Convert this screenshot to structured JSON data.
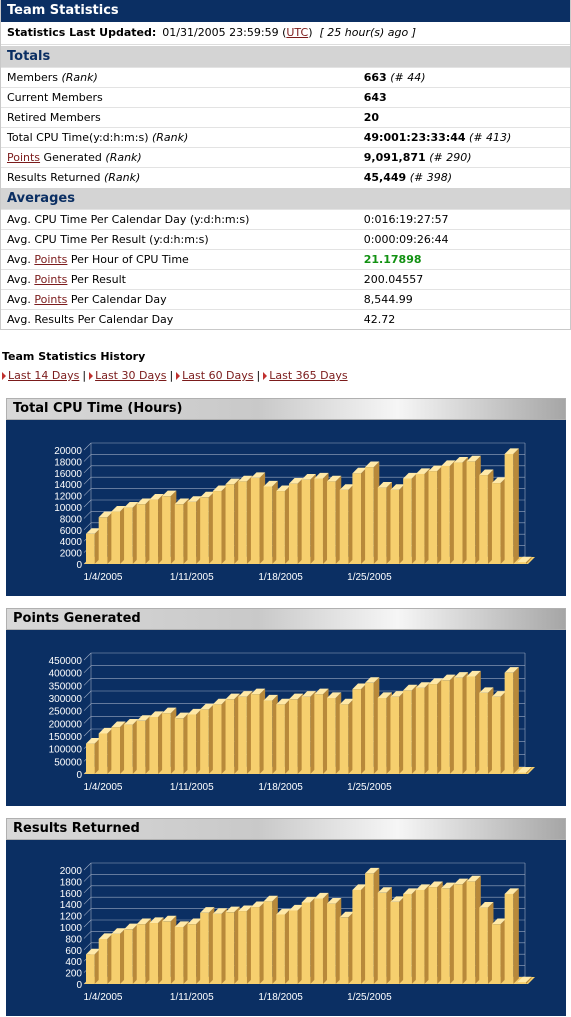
{
  "header": {
    "title": "Team Statistics"
  },
  "updated": {
    "label": "Statistics Last Updated:",
    "date": "01/31/2005 23:59:59 (",
    "tz": "UTC",
    "close": ")",
    "ago": "[ 25 hour(s) ago ]"
  },
  "totals": {
    "heading": "Totals",
    "rows": [
      {
        "label": "Members",
        "rank_label": "(Rank)",
        "value": "663",
        "rank": "(# 44)"
      },
      {
        "label": "Current Members",
        "value": "643"
      },
      {
        "label": "Retired Members",
        "value": "20"
      },
      {
        "label": "Total CPU Time(y:d:h:m:s)",
        "rank_label": "(Rank)",
        "value": "49:001:23:33:44",
        "rank": "(# 413)"
      },
      {
        "link": "Points",
        "label": " Generated",
        "rank_label": "(Rank)",
        "value": "9,091,871",
        "rank": "(# 290)"
      },
      {
        "label": "Results Returned",
        "rank_label": "(Rank)",
        "value": "45,449",
        "rank": "(# 398)"
      }
    ]
  },
  "averages": {
    "heading": "Averages",
    "rows": [
      {
        "label": "Avg. CPU Time Per Calendar Day (y:d:h:m:s)",
        "value": "0:016:19:27:57"
      },
      {
        "label": "Avg. CPU Time Per Result (y:d:h:m:s)",
        "value": "0:000:09:26:44"
      },
      {
        "prefix": "Avg. ",
        "link": "Points",
        "label": " Per Hour of CPU Time",
        "value": "21.17898"
      },
      {
        "prefix": "Avg. ",
        "link": "Points",
        "label": " Per Result",
        "value": "200.04557"
      },
      {
        "prefix": "Avg. ",
        "link": "Points",
        "label": " Per Calendar Day",
        "value": "8,544.99"
      },
      {
        "label": "Avg. Results Per Calendar Day",
        "value": "42.72"
      }
    ]
  },
  "history": {
    "title": "Team Statistics History",
    "links": [
      "Last 14 Days",
      "Last 30 Days",
      "Last 60 Days",
      "Last 365 Days"
    ],
    "separator": "|"
  },
  "colors": {
    "header_bg": "#0b2f63",
    "bar_face": "#f6cf6e",
    "bar_side": "#b8893a",
    "bar_top": "#ffe9a8",
    "chart_bg": "#0b2f63",
    "accent_green": "#129112"
  },
  "chart_data": [
    {
      "type": "bar",
      "title": "Total CPU Time (Hours)",
      "x_tick_labels": [
        "1/4/2005",
        "1/11/2005",
        "1/18/2005",
        "1/25/2005"
      ],
      "y_ticks": [
        0,
        2000,
        4000,
        6000,
        8000,
        10000,
        12000,
        14000,
        16000,
        18000,
        20000
      ],
      "ylim": [
        0,
        20000
      ],
      "grid": true,
      "values": [
        5300,
        8200,
        9200,
        9900,
        10500,
        11300,
        11900,
        10500,
        10900,
        11700,
        12800,
        14000,
        14500,
        15100,
        13600,
        12800,
        14100,
        14800,
        15000,
        14500,
        13000,
        15900,
        17000,
        13400,
        13000,
        15000,
        15800,
        16300,
        17200,
        17800,
        18000,
        15600,
        14200,
        19300,
        300
      ]
    },
    {
      "type": "bar",
      "title": "Points Generated",
      "x_tick_labels": [
        "1/4/2005",
        "1/11/2005",
        "1/18/2005",
        "1/25/2005"
      ],
      "y_ticks": [
        0,
        50000,
        100000,
        150000,
        200000,
        250000,
        300000,
        350000,
        400000,
        450000
      ],
      "ylim": [
        0,
        450000
      ],
      "grid": true,
      "values": [
        120000,
        160000,
        185000,
        195000,
        210000,
        225000,
        240000,
        220000,
        235000,
        255000,
        275000,
        295000,
        305000,
        315000,
        290000,
        275000,
        295000,
        305000,
        315000,
        300000,
        275000,
        335000,
        360000,
        300000,
        305000,
        330000,
        340000,
        355000,
        370000,
        380000,
        385000,
        320000,
        305000,
        400000,
        5000
      ]
    },
    {
      "type": "bar",
      "title": "Results Returned",
      "x_tick_labels": [
        "1/4/2005",
        "1/11/2005",
        "1/18/2005",
        "1/25/2005"
      ],
      "y_ticks": [
        0,
        200,
        400,
        600,
        800,
        1000,
        1200,
        1400,
        1600,
        1800,
        2000
      ],
      "ylim": [
        0,
        2000
      ],
      "grid": true,
      "values": [
        520,
        790,
        880,
        960,
        1050,
        1070,
        1100,
        1000,
        1050,
        1250,
        1230,
        1260,
        1280,
        1350,
        1450,
        1220,
        1290,
        1430,
        1500,
        1410,
        1170,
        1650,
        1940,
        1600,
        1440,
        1580,
        1650,
        1700,
        1680,
        1750,
        1800,
        1340,
        1050,
        1580,
        30
      ]
    }
  ]
}
